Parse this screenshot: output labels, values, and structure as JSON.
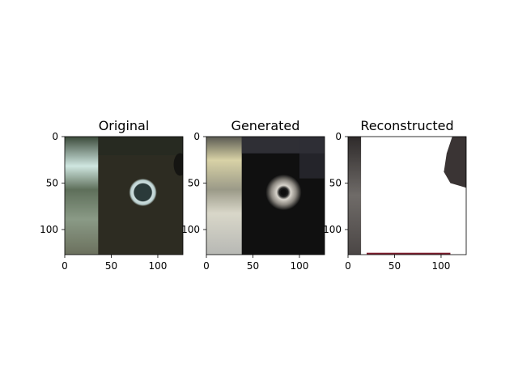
{
  "chart_data": [
    {
      "type": "heatmap",
      "title": "Original",
      "xlim": [
        0,
        127
      ],
      "ylim": [
        127,
        0
      ],
      "xticks": [
        0,
        50,
        100
      ],
      "yticks": [
        0,
        50,
        100
      ],
      "grid": false
    },
    {
      "type": "heatmap",
      "title": "Generated",
      "xlim": [
        0,
        127
      ],
      "ylim": [
        127,
        0
      ],
      "xticks": [
        0,
        50,
        100
      ],
      "yticks": [
        0,
        50,
        100
      ],
      "grid": false
    },
    {
      "type": "heatmap",
      "title": "Reconstructed",
      "xlim": [
        0,
        127
      ],
      "ylim": [
        127,
        0
      ],
      "xticks": [
        0,
        50,
        100
      ],
      "yticks": [
        0,
        50,
        100
      ],
      "grid": false
    }
  ],
  "colors": {
    "background": "#ffffff",
    "axis": "#000000"
  }
}
